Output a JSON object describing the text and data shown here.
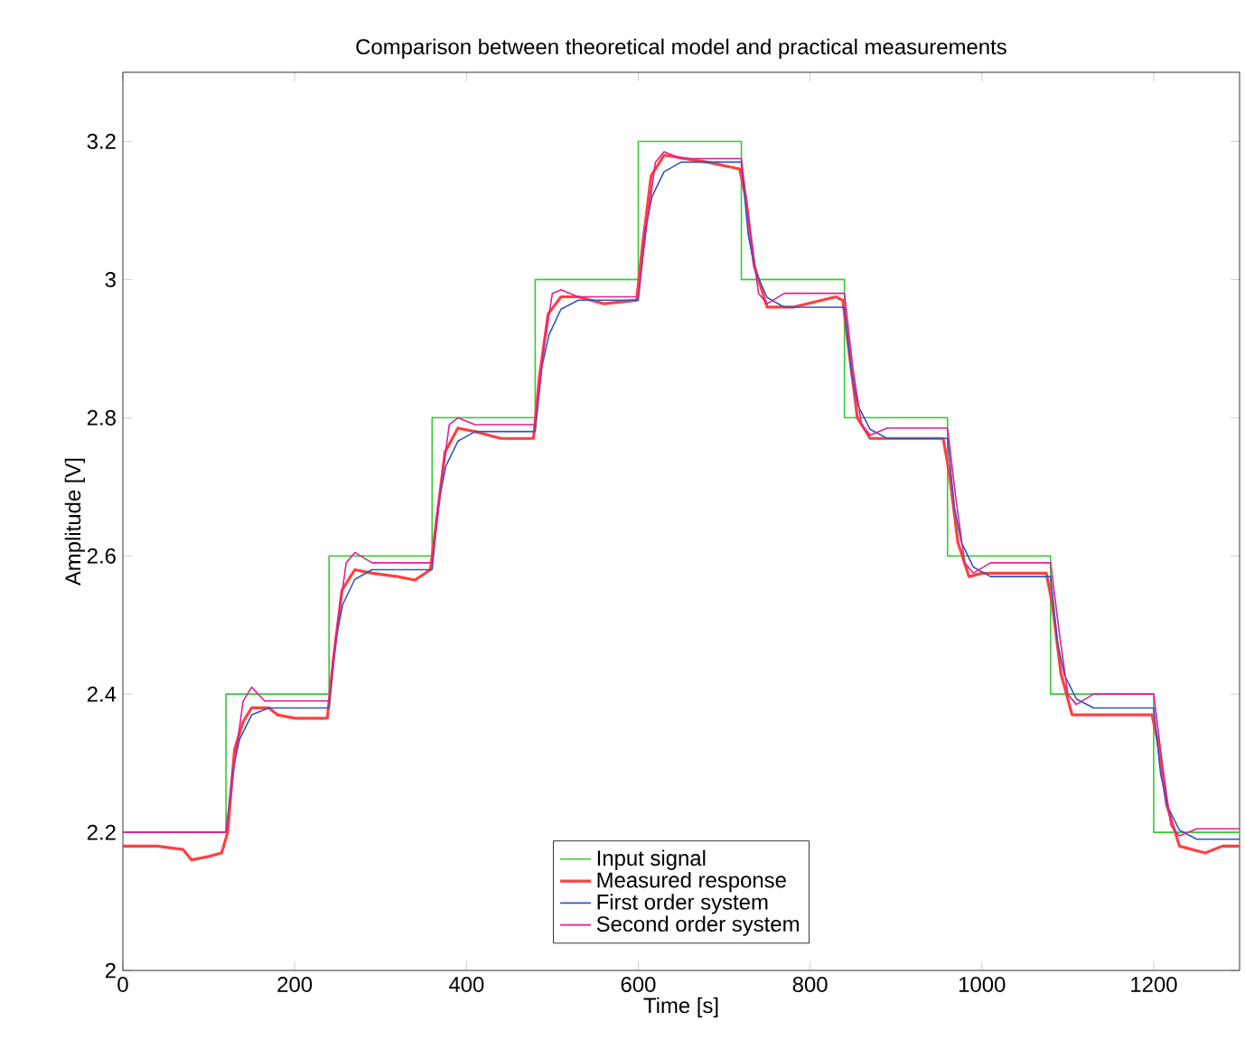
{
  "chart_data": {
    "type": "line",
    "title": "Comparison between theoretical model and practical measurements",
    "xlabel": "Time [s]",
    "ylabel": "Amplitude [V]",
    "xlim": [
      0,
      1300
    ],
    "ylim": [
      2,
      3.3
    ],
    "xticks": [
      0,
      200,
      400,
      600,
      800,
      1000,
      1200
    ],
    "yticks": [
      2,
      2.2,
      2.4,
      2.6,
      2.8,
      3,
      3.2
    ],
    "legend": "bottom",
    "grid": false,
    "series": [
      {
        "name": "Input signal",
        "type": "step",
        "color": "#33cc33",
        "x": [
          0,
          120,
          240,
          360,
          480,
          600,
          720,
          840,
          960,
          1080,
          1200,
          1300
        ],
        "values": [
          2.2,
          2.4,
          2.6,
          2.8,
          3.0,
          3.2,
          3.0,
          2.8,
          2.6,
          2.4,
          2.2,
          2.2
        ]
      },
      {
        "name": "Measured response",
        "color": "#ff4040",
        "x": [
          0,
          40,
          70,
          80,
          100,
          115,
          122,
          130,
          140,
          150,
          170,
          180,
          200,
          238,
          245,
          255,
          270,
          290,
          320,
          340,
          358,
          365,
          375,
          390,
          410,
          440,
          478,
          485,
          495,
          510,
          530,
          560,
          598,
          605,
          615,
          630,
          680,
          718,
          725,
          735,
          750,
          780,
          830,
          838,
          845,
          855,
          870,
          900,
          955,
          962,
          972,
          985,
          1000,
          1075,
          1082,
          1092,
          1105,
          1150,
          1198,
          1205,
          1215,
          1230,
          1260,
          1280,
          1300
        ],
        "values": [
          2.18,
          2.18,
          2.175,
          2.16,
          2.165,
          2.17,
          2.2,
          2.32,
          2.36,
          2.38,
          2.38,
          2.37,
          2.365,
          2.365,
          2.45,
          2.55,
          2.58,
          2.575,
          2.57,
          2.565,
          2.58,
          2.65,
          2.75,
          2.785,
          2.78,
          2.77,
          2.77,
          2.86,
          2.95,
          2.975,
          2.975,
          2.965,
          2.97,
          3.05,
          3.15,
          3.18,
          3.17,
          3.16,
          3.12,
          3.02,
          2.96,
          2.96,
          2.975,
          2.97,
          2.9,
          2.8,
          2.77,
          2.77,
          2.77,
          2.72,
          2.62,
          2.57,
          2.575,
          2.575,
          2.53,
          2.43,
          2.37,
          2.37,
          2.37,
          2.33,
          2.24,
          2.18,
          2.17,
          2.18,
          2.18
        ]
      },
      {
        "name": "First order system",
        "color": "#3355bb",
        "x": [
          0,
          120,
          128,
          136,
          150,
          170,
          240,
          248,
          256,
          270,
          290,
          360,
          368,
          376,
          390,
          410,
          480,
          488,
          496,
          510,
          530,
          600,
          608,
          616,
          630,
          650,
          720,
          728,
          736,
          750,
          770,
          840,
          848,
          856,
          870,
          890,
          960,
          968,
          976,
          990,
          1010,
          1080,
          1088,
          1096,
          1110,
          1130,
          1200,
          1208,
          1216,
          1230,
          1250,
          1300
        ],
        "values": [
          2.2,
          2.2,
          2.29,
          2.335,
          2.37,
          2.38,
          2.38,
          2.48,
          2.53,
          2.566,
          2.58,
          2.58,
          2.68,
          2.73,
          2.766,
          2.78,
          2.78,
          2.875,
          2.92,
          2.957,
          2.97,
          2.97,
          3.07,
          3.12,
          3.156,
          3.17,
          3.17,
          3.065,
          3.013,
          2.974,
          2.96,
          2.96,
          2.865,
          2.817,
          2.783,
          2.77,
          2.77,
          2.67,
          2.62,
          2.584,
          2.57,
          2.57,
          2.475,
          2.428,
          2.393,
          2.38,
          2.38,
          2.285,
          2.238,
          2.203,
          2.19,
          2.19
        ]
      },
      {
        "name": "Second order system",
        "color": "#e0208f",
        "x": [
          0,
          120,
          130,
          140,
          150,
          165,
          240,
          250,
          260,
          270,
          290,
          360,
          370,
          380,
          390,
          410,
          480,
          490,
          500,
          510,
          530,
          600,
          610,
          620,
          630,
          650,
          720,
          730,
          740,
          750,
          770,
          840,
          850,
          860,
          870,
          890,
          960,
          970,
          980,
          990,
          1010,
          1080,
          1090,
          1100,
          1110,
          1130,
          1200,
          1210,
          1220,
          1230,
          1250,
          1300
        ],
        "values": [
          2.2,
          2.2,
          2.3,
          2.39,
          2.41,
          2.39,
          2.39,
          2.5,
          2.59,
          2.605,
          2.59,
          2.59,
          2.7,
          2.79,
          2.8,
          2.79,
          2.79,
          2.9,
          2.98,
          2.985,
          2.975,
          2.975,
          3.08,
          3.17,
          3.185,
          3.175,
          3.175,
          3.07,
          2.98,
          2.965,
          2.98,
          2.98,
          2.87,
          2.79,
          2.775,
          2.785,
          2.785,
          2.68,
          2.59,
          2.575,
          2.59,
          2.59,
          2.49,
          2.4,
          2.385,
          2.4,
          2.4,
          2.3,
          2.21,
          2.195,
          2.205,
          2.205
        ]
      }
    ]
  }
}
